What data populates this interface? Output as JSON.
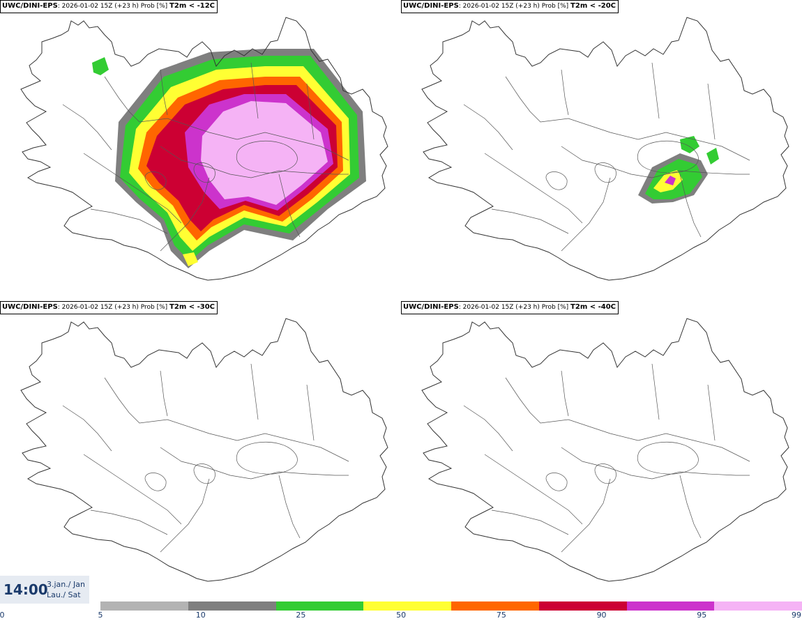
{
  "panels": [
    {
      "model": "UWC/DINI-EPS",
      "run": ": 2026-01-02 15Z (+23 h) Prob [%]",
      "threshold": "T2m < -12C",
      "field": "large"
    },
    {
      "model": "UWC/DINI-EPS",
      "run": ": 2026-01-02 15Z (+23 h) Prob [%]",
      "threshold": "T2m < -20C",
      "field": "small"
    },
    {
      "model": "UWC/DINI-EPS",
      "run": ": 2026-01-02 15Z (+23 h) Prob [%]",
      "threshold": "T2m < -30C",
      "field": "none"
    },
    {
      "model": "UWC/DINI-EPS",
      "run": ": 2026-01-02 15Z (+23 h) Prob [%]",
      "threshold": "T2m < -40C",
      "field": "none"
    }
  ],
  "valid_time": {
    "clock": "14:00",
    "date_line1": "3.jan./ Jan",
    "date_line2": "Lau./ Sat"
  },
  "legend": {
    "first_tick": "0",
    "ticks": [
      "5",
      "10",
      "25",
      "50",
      "75",
      "90",
      "95",
      "99"
    ],
    "colors": [
      "#b3b3b3",
      "#7f7f7f",
      "#33cc33",
      "#ffff33",
      "#ff6600",
      "#cc0033",
      "#cc33cc",
      "#f5b3f5"
    ]
  }
}
